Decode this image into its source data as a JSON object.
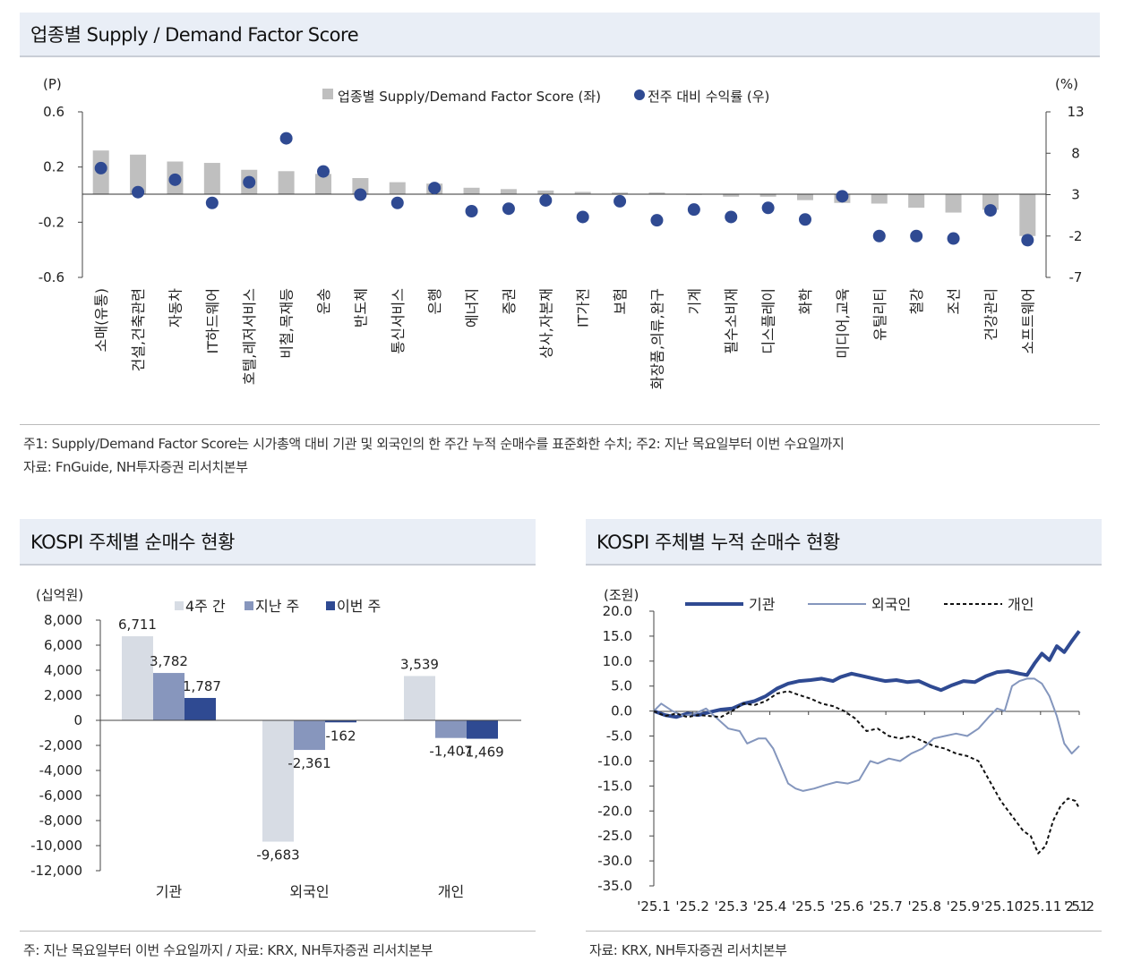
{
  "panel1": {
    "title": "업종별  Supply / Demand Factor Score",
    "note1": "주1: Supply/Demand Factor Score는 시가총액 대비 기관 및 외국인의 한 주간 누적 순매수를 표준화한 수치; 주2: 지난 목요일부터 이번 수요일까지",
    "note2": "자료: FnGuide, NH투자증권 리서치본부"
  },
  "panel2": {
    "title": "KOSPI 주체별 순매수 현황",
    "note": "주: 지난 목요일부터 이번 수요일까지 / 자료: KRX, NH투자증권 리서치본부"
  },
  "panel3": {
    "title": "KOSPI 주체별 누적 순매수 현황",
    "note": "자료: KRX, NH투자증권 리서치본부"
  },
  "chart_data": [
    {
      "type": "bar",
      "title": "업종별 Supply / Demand Factor Score",
      "left_unit": "(P)",
      "right_unit": "(%)",
      "legend": [
        "업종별 Supply/Demand Factor Score (좌)",
        "전주 대비 수익률 (우)"
      ],
      "left_ticks": [
        "0.6",
        "0.2",
        "-0.2",
        "-0.6"
      ],
      "right_ticks": [
        "13",
        "8",
        "3",
        "-2",
        "-7"
      ],
      "ylim_left": [
        -0.6,
        0.6
      ],
      "ylim_right": [
        -7,
        13
      ],
      "categories": [
        "소매(유통)",
        "건설,건축관련",
        "자동차",
        "IT하드웨어",
        "호텔,레저서비스",
        "비철,목재등",
        "운송",
        "반도체",
        "통신서비스",
        "은행",
        "에너지",
        "증권",
        "상사,자본재",
        "IT가전",
        "보험",
        "화장품,의류,완구",
        "기계",
        "필수소비재",
        "디스플레이",
        "화학",
        "미디어,교육",
        "유틸리티",
        "철강",
        "조선",
        "건강관리",
        "소프트웨어"
      ],
      "series": [
        {
          "name": "업종별 Supply/Demand Factor Score (좌)",
          "kind": "bar",
          "axis": "left",
          "color": "#bfbfbf",
          "values": [
            0.32,
            0.29,
            0.24,
            0.23,
            0.18,
            0.17,
            0.15,
            0.12,
            0.09,
            0.08,
            0.05,
            0.04,
            0.03,
            0.02,
            0.015,
            0.015,
            0.005,
            -0.015,
            -0.015,
            -0.04,
            -0.06,
            -0.065,
            -0.095,
            -0.13,
            -0.11,
            -0.3
          ]
        },
        {
          "name": "전주 대비 수익률 (우)",
          "kind": "dot",
          "axis": "right",
          "color": "#2f4a92",
          "values": [
            6.2,
            3.3,
            4.8,
            2.0,
            4.5,
            9.8,
            5.8,
            3.0,
            2.0,
            3.8,
            1.0,
            1.3,
            2.3,
            0.3,
            2.2,
            -0.1,
            1.2,
            0.3,
            1.4,
            0.0,
            2.8,
            -2.0,
            -2.0,
            -2.3,
            1.1,
            -2.5
          ]
        }
      ]
    },
    {
      "type": "bar",
      "title": "KOSPI 주체별 순매수 현황",
      "unit": "(십억원)",
      "categories": [
        "기관",
        "외국인",
        "개인"
      ],
      "ylim": [
        -12000,
        8000
      ],
      "y_ticks": [
        "8,000",
        "6,000",
        "4,000",
        "2,000",
        "0",
        "-2,000",
        "-4,000",
        "-6,000",
        "-8,000",
        "-10,000",
        "-12,000"
      ],
      "series": [
        {
          "name": "4주 간",
          "color": "#d7dce4",
          "values": [
            6711,
            -9683,
            3539
          ],
          "labels": [
            "6,711",
            "-9,683",
            "3,539"
          ]
        },
        {
          "name": "지난 주",
          "color": "#8796bd",
          "values": [
            3782,
            -2361,
            -1407
          ],
          "labels": [
            "3,782",
            "-2,361",
            "-1,407"
          ]
        },
        {
          "name": "이번 주",
          "color": "#2f4a92",
          "values": [
            1787,
            -162,
            -1469
          ],
          "labels": [
            "1,787",
            "-162",
            "-1,469"
          ]
        }
      ]
    },
    {
      "type": "line",
      "title": "KOSPI 주체별 누적 순매수 현황",
      "unit": "(조원)",
      "x_labels": [
        "'25.1",
        "'25.2",
        "'25.3",
        "'25.4",
        "'25.5",
        "'25.6",
        "'25.7",
        "'25.8",
        "'25.9",
        "'25.10",
        "'25.11",
        "'25.12"
      ],
      "y_ticks": [
        "20.0",
        "15.0",
        "10.0",
        "5.0",
        "0.0",
        "-5.0",
        "-10.0",
        "-15.0",
        "-20.0",
        "-25.0",
        "-30.0",
        "-35.0"
      ],
      "ylim": [
        -35,
        20
      ],
      "series": [
        {
          "name": "기관",
          "color": "#2f4a92",
          "style": "solid-thick",
          "x": [
            0,
            0.3,
            0.6,
            0.9,
            1.2,
            1.5,
            1.8,
            2.1,
            2.4,
            2.7,
            3.0,
            3.3,
            3.6,
            3.9,
            4.2,
            4.5,
            4.8,
            5.0,
            5.3,
            5.6,
            5.9,
            6.2,
            6.5,
            6.8,
            7.1,
            7.4,
            7.7,
            8.0,
            8.3,
            8.6,
            8.9,
            9.2,
            9.5,
            9.8,
            10.0,
            10.2,
            10.4,
            10.6,
            10.8,
            11.0,
            11.2,
            11.4
          ],
          "y": [
            0.0,
            -0.8,
            -1.2,
            -0.5,
            -0.8,
            -0.2,
            0.3,
            0.5,
            1.5,
            2.0,
            3.0,
            4.5,
            5.5,
            6.0,
            6.2,
            6.5,
            6.0,
            6.8,
            7.5,
            7.0,
            6.5,
            6.0,
            6.2,
            5.8,
            6.0,
            5.0,
            4.2,
            5.2,
            6.0,
            5.8,
            7.0,
            7.8,
            8.0,
            7.5,
            7.2,
            9.5,
            11.5,
            10.2,
            13.0,
            11.8,
            14.0,
            16.0
          ]
        },
        {
          "name": "외국인",
          "color": "#8496bd",
          "style": "solid-thin",
          "x": [
            0,
            0.2,
            0.5,
            0.8,
            1.1,
            1.4,
            1.7,
            2.0,
            2.3,
            2.5,
            2.8,
            3.0,
            3.2,
            3.4,
            3.6,
            3.8,
            4.0,
            4.3,
            4.6,
            4.9,
            5.2,
            5.5,
            5.8,
            6.0,
            6.3,
            6.6,
            6.9,
            7.2,
            7.5,
            7.8,
            8.1,
            8.4,
            8.7,
            9.0,
            9.2,
            9.4,
            9.6,
            9.8,
            10.0,
            10.2,
            10.4,
            10.6,
            10.8,
            11.0,
            11.2,
            11.4
          ],
          "y": [
            0.0,
            1.5,
            0.0,
            -1.0,
            -0.5,
            0.5,
            -1.5,
            -3.5,
            -4.0,
            -6.5,
            -5.5,
            -5.5,
            -7.5,
            -11.0,
            -14.5,
            -15.5,
            -16.0,
            -15.5,
            -14.8,
            -14.2,
            -14.5,
            -13.8,
            -10.0,
            -10.5,
            -9.5,
            -10.0,
            -8.5,
            -7.5,
            -5.5,
            -5.0,
            -4.5,
            -5.0,
            -3.5,
            -1.0,
            0.5,
            0.0,
            5.0,
            6.0,
            6.5,
            6.5,
            5.5,
            3.0,
            -1.0,
            -6.5,
            -8.5,
            -7.0
          ]
        },
        {
          "name": "개인",
          "color": "#111111",
          "style": "dashed",
          "x": [
            0,
            0.3,
            0.6,
            0.9,
            1.2,
            1.5,
            1.8,
            2.1,
            2.4,
            2.7,
            3.0,
            3.3,
            3.6,
            3.9,
            4.2,
            4.5,
            4.8,
            5.1,
            5.4,
            5.7,
            6.0,
            6.3,
            6.6,
            6.9,
            7.2,
            7.5,
            7.8,
            8.1,
            8.4,
            8.7,
            9.0,
            9.3,
            9.6,
            9.9,
            10.1,
            10.3,
            10.5,
            10.7,
            10.9,
            11.1,
            11.3,
            11.4
          ],
          "y": [
            0.0,
            -1.0,
            -0.5,
            -1.2,
            -0.8,
            -1.0,
            -1.2,
            0.0,
            1.5,
            1.2,
            2.0,
            3.5,
            4.0,
            3.2,
            2.5,
            1.5,
            1.0,
            0.0,
            -1.5,
            -4.0,
            -3.5,
            -5.0,
            -5.5,
            -5.0,
            -6.0,
            -7.0,
            -7.5,
            -8.5,
            -9.0,
            -10.0,
            -14.0,
            -18.0,
            -21.0,
            -24.0,
            -25.0,
            -28.5,
            -27.0,
            -22.0,
            -19.0,
            -17.5,
            -18.0,
            -19.5
          ]
        }
      ]
    }
  ]
}
